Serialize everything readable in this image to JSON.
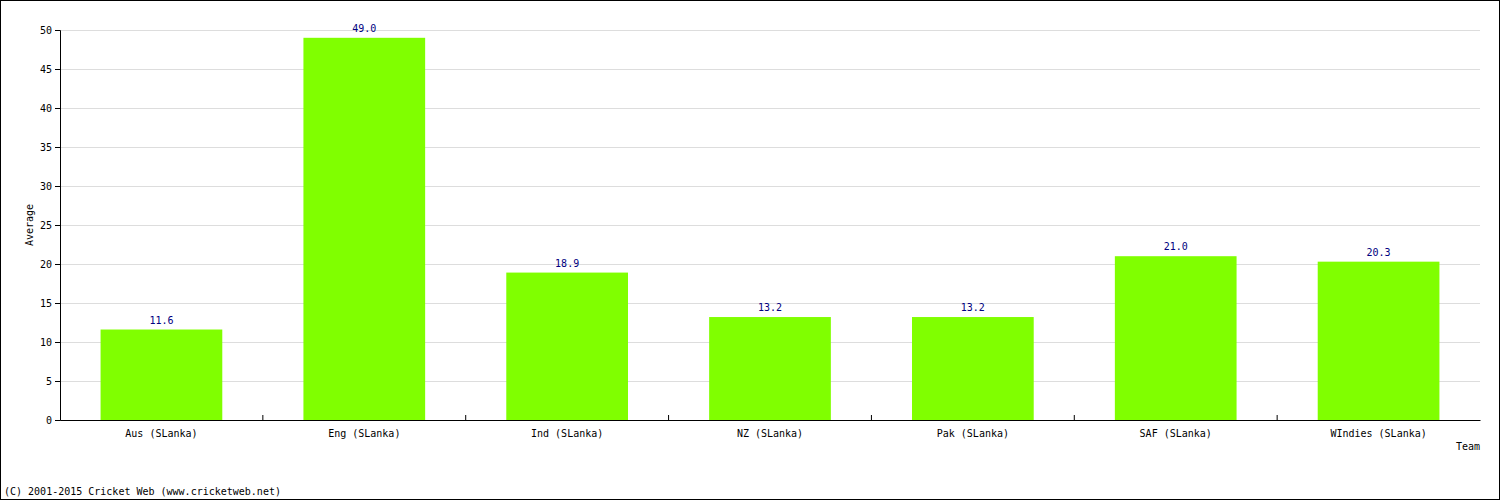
{
  "chart_data": {
    "type": "bar",
    "categories": [
      "Aus (SLanka)",
      "Eng (SLanka)",
      "Ind (SLanka)",
      "NZ (SLanka)",
      "Pak (SLanka)",
      "SAF (SLanka)",
      "WIndies (SLanka)"
    ],
    "values": [
      11.6,
      49.0,
      18.9,
      13.2,
      13.2,
      21.0,
      20.3
    ],
    "value_labels": [
      "11.6",
      "49.0",
      "18.9",
      "13.2",
      "13.2",
      "21.0",
      "20.3"
    ],
    "color": "#80ff00",
    "ylim": [
      0,
      50
    ],
    "yticks": [
      0,
      5,
      10,
      15,
      20,
      25,
      30,
      35,
      40,
      45,
      50
    ],
    "grid": true,
    "data_labels": true,
    "x_label": "Team",
    "y_label": "Average",
    "annotations": [
      "(C) 2001-2015 Cricket Web (www.cricketweb.net)"
    ]
  }
}
